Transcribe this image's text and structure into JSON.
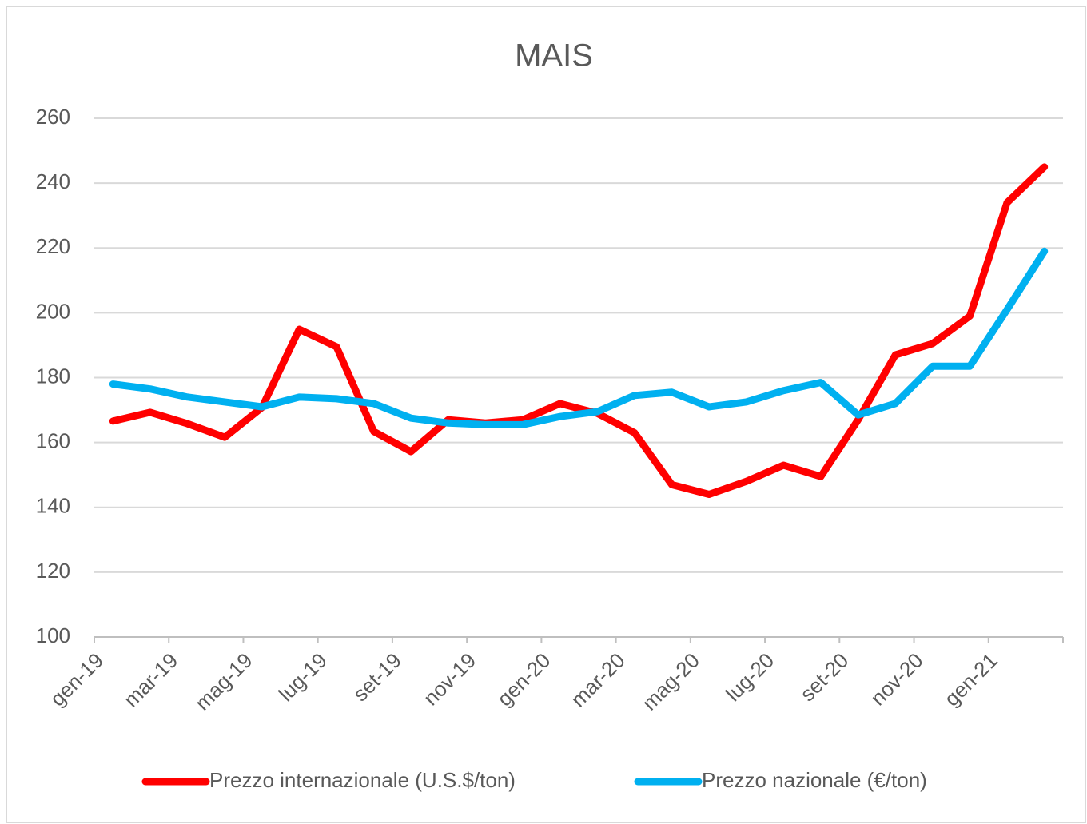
{
  "chart_data": {
    "type": "line",
    "title": "MAIS",
    "categories": [
      "gen-19",
      null,
      "mar-19",
      null,
      "mag-19",
      null,
      "lug-19",
      null,
      "set-19",
      null,
      "nov-19",
      null,
      "gen-20",
      null,
      "mar-20",
      null,
      "mag-20",
      null,
      "lug-20",
      null,
      "set-20",
      null,
      "nov-20",
      null,
      "gen-21",
      null
    ],
    "series": [
      {
        "name": "Prezzo internazionale (U.S.$/ton)",
        "color": "#ff0000",
        "values": [
          166.6,
          169.3,
          165.8,
          161.6,
          170.8,
          194.9,
          189.5,
          163.4,
          157.2,
          167,
          166,
          167,
          172,
          169,
          163,
          147,
          144,
          148,
          153,
          149.5,
          167,
          187,
          190.5,
          199,
          234,
          245
        ]
      },
      {
        "name": "Prezzo nazionale (€/ton)",
        "color": "#00b0f0",
        "values": [
          178,
          176.5,
          174,
          172.5,
          171,
          174,
          173.5,
          172,
          167.5,
          166,
          165.5,
          165.5,
          168,
          169.5,
          174.5,
          175.5,
          171,
          172.5,
          176,
          178.5,
          168.5,
          172,
          183.5,
          183.5,
          201,
          219
        ]
      }
    ],
    "ylim": [
      100,
      260
    ],
    "yticks": [
      100,
      120,
      140,
      160,
      180,
      200,
      220,
      240,
      260
    ],
    "grid": true,
    "legend": "bottom"
  }
}
